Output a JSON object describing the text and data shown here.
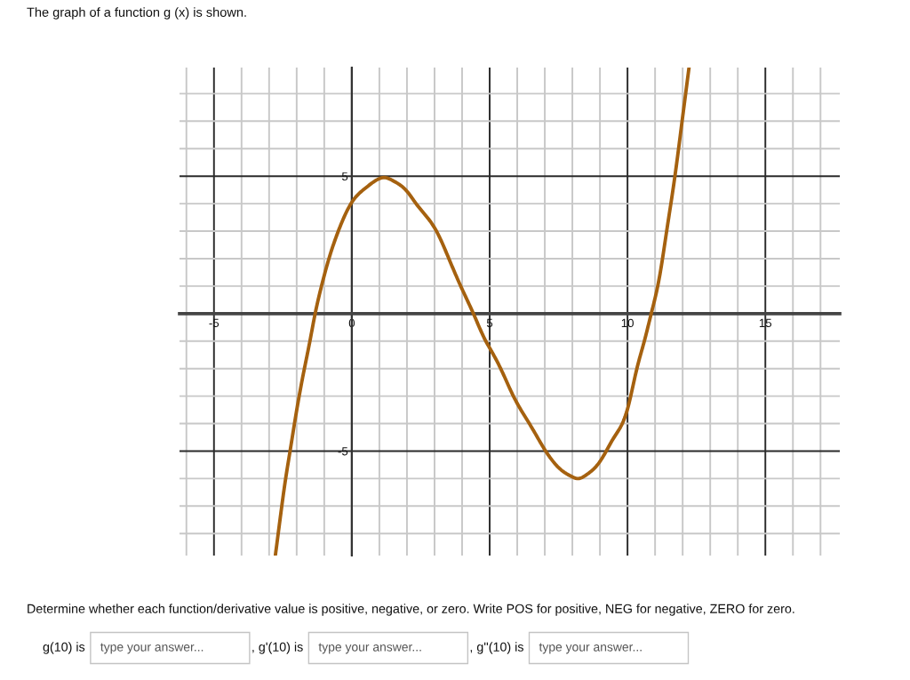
{
  "chart_data": {
    "type": "line",
    "title": "The graph of a function g (x) is shown.",
    "x": [
      -2.77,
      -2.67,
      -2.54,
      -2.4,
      -2.24,
      -2.08,
      -1.91,
      -1.72,
      -1.52,
      -1.33,
      -1.1,
      -0.83,
      -0.49,
      0,
      0.5,
      1,
      1.17,
      1.5,
      2,
      2.33,
      3.07,
      3.52,
      3.95,
      4.41,
      4.86,
      5,
      5.4,
      5.86,
      6.5,
      7,
      7.5,
      8,
      8.19,
      8.5,
      9,
      9.5,
      10,
      10.34,
      10.61,
      10.86,
      11.15,
      11.42,
      11.72,
      11.98,
      12.23
    ],
    "values": [
      -8.77,
      -8.0,
      -7.0,
      -6.0,
      -5.0,
      -4.0,
      -3.0,
      -2.0,
      -1.0,
      0,
      1.0,
      2.0,
      3.0,
      4.05,
      4.57,
      4.91,
      4.95,
      4.83,
      4.45,
      4.0,
      3.0,
      2.0,
      1.0,
      0,
      -1.0,
      -1.25,
      -2.0,
      -3.0,
      -4.1,
      -4.95,
      -5.6,
      -5.94,
      -6.0,
      -5.87,
      -5.38,
      -4.52,
      -3.47,
      -2.0,
      -1.0,
      0,
      1.28,
      3.0,
      5.0,
      7.0,
      8.94
    ],
    "color": "#a5610f",
    "line_style": "solid",
    "xlim": [
      -6.25,
      17.7
    ],
    "ylim": [
      -8.8,
      8.95
    ],
    "xticks": [
      {
        "value": -6,
        "label": null
      },
      -5,
      {
        "value": -4,
        "label": null
      },
      {
        "value": -3,
        "label": null
      },
      {
        "value": -2,
        "label": null
      },
      {
        "value": -1,
        "label": null
      },
      0,
      {
        "value": 1,
        "label": null
      },
      {
        "value": 2,
        "label": null
      },
      {
        "value": 3,
        "label": null
      },
      {
        "value": 4,
        "label": null
      },
      5,
      {
        "value": 6,
        "label": null
      },
      {
        "value": 7,
        "label": null
      },
      {
        "value": 8,
        "label": null
      },
      {
        "value": 9,
        "label": null
      },
      10,
      {
        "value": 11,
        "label": null
      },
      {
        "value": 12,
        "label": null
      },
      {
        "value": 13,
        "label": null
      },
      {
        "value": 14,
        "label": null
      },
      15,
      {
        "value": 16,
        "label": null
      },
      {
        "value": 17,
        "label": null
      }
    ],
    "yticks": [
      {
        "value": -8,
        "label": null
      },
      {
        "value": -7,
        "label": null
      },
      {
        "value": -6,
        "label": null
      },
      -5,
      {
        "value": -4,
        "label": null
      },
      {
        "value": -3,
        "label": null
      },
      {
        "value": -2,
        "label": null
      },
      {
        "value": -1,
        "label": null
      },
      {
        "value": 0,
        "label": null
      },
      {
        "value": 1,
        "label": null
      },
      {
        "value": 2,
        "label": null
      },
      {
        "value": 3,
        "label": null
      },
      {
        "value": 4,
        "label": null
      },
      5,
      {
        "value": 6,
        "label": null
      },
      {
        "value": 7,
        "label": null
      },
      {
        "value": 8,
        "label": null
      }
    ],
    "grid": true,
    "annotations": [
      "Determine whether each function/derivative value is positive, negative, or zero. Write POS for positive, NEG for negative, ZERO for zero.",
      "g(10) is",
      "type your answer...",
      ", g'(10) is",
      "type your answer...",
      ", g''(10) is",
      "type your answer..."
    ]
  }
}
